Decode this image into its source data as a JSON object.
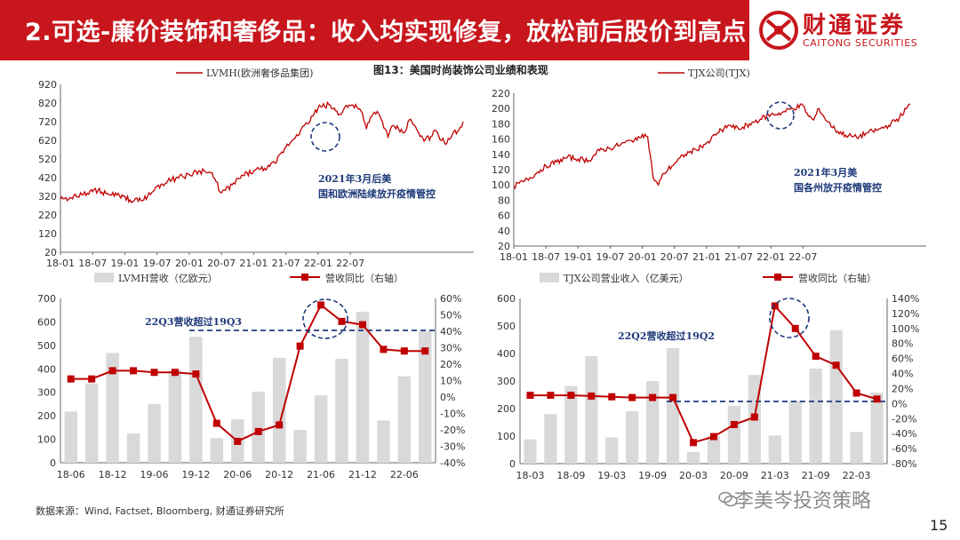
{
  "header": {
    "title": "2.可选-廉价装饰和奢侈品：收入均实现修复，放松前后股价到高点"
  },
  "logo": {
    "name": "财通证券",
    "en": "CAITONG SECURITIES"
  },
  "figure_title": "图13：美国时尚装饰公司业绩和表现",
  "source": "数据来源：Wind, Factset, Bloomberg, 财通证券研究所",
  "watermark": "李美岑投资策略",
  "page_number": "15",
  "colors": {
    "brand": "#c8161d",
    "line": "#c00000",
    "bar": "#d9d9d9",
    "dash": "#1f3a7a"
  },
  "chart_data": [
    {
      "id": "lvmh-price",
      "type": "line",
      "legend": "LVMH(欧洲奢侈品集团)",
      "yticks": [
        "920",
        "820",
        "720",
        "620",
        "520",
        "420",
        "320",
        "220",
        "120",
        "20"
      ],
      "ylim": [
        20,
        920
      ],
      "xticks": [
        "18-01",
        "18-07",
        "19-01",
        "19-07",
        "20-01",
        "20-07",
        "21-01",
        "21-07",
        "22-01",
        "22-07"
      ],
      "x": [
        0,
        2,
        4,
        6,
        7,
        9,
        11,
        13,
        15,
        17,
        18,
        20,
        22,
        24,
        26,
        28,
        29,
        30,
        32,
        34,
        36,
        38,
        39,
        40,
        42,
        44,
        46,
        48,
        50,
        52,
        53,
        55,
        56,
        57,
        58,
        59,
        60,
        61,
        62,
        63,
        64,
        65,
        66,
        67,
        68,
        69,
        70,
        71,
        72,
        73,
        74,
        75
      ],
      "values": [
        305,
        312,
        328,
        345,
        352,
        330,
        322,
        300,
        296,
        340,
        372,
        404,
        418,
        436,
        455,
        446,
        398,
        338,
        382,
        432,
        456,
        470,
        480,
        497,
        584,
        650,
        710,
        794,
        812,
        760,
        800,
        812,
        776,
        680,
        750,
        775,
        720,
        638,
        700,
        680,
        660,
        730,
        700,
        640,
        625,
        640,
        670,
        620,
        605,
        650,
        670,
        720
      ],
      "annotation": "2021年3月后美国和欧洲陆续放开疫情管控"
    },
    {
      "id": "tjx-price",
      "type": "line",
      "legend": "TJX公司(TJX)",
      "yticks": [
        "220",
        "200",
        "180",
        "160",
        "140",
        "120",
        "100",
        "80",
        "60",
        "40",
        "20"
      ],
      "ylim": [
        20,
        220
      ],
      "xticks": [
        "18-01",
        "18-07",
        "19-01",
        "19-07",
        "20-01",
        "20-07",
        "21-01",
        "21-07",
        "22-01",
        "22-07"
      ],
      "x": [
        0,
        2,
        4,
        6,
        8,
        10,
        12,
        14,
        16,
        18,
        20,
        22,
        24,
        25,
        26,
        27,
        28,
        30,
        32,
        34,
        36,
        38,
        40,
        42,
        44,
        46,
        48,
        50,
        52,
        54,
        55,
        56,
        57,
        58,
        60,
        62,
        64,
        66,
        68,
        70,
        72,
        74
      ],
      "values": [
        98,
        105,
        114,
        125,
        130,
        136,
        134,
        132,
        145,
        148,
        153,
        158,
        166,
        163,
        110,
        100,
        115,
        128,
        140,
        146,
        155,
        168,
        178,
        173,
        180,
        186,
        192,
        194,
        200,
        204,
        190,
        185,
        200,
        188,
        172,
        165,
        162,
        168,
        172,
        178,
        188,
        206
      ],
      "annotation": "2021年3月美国各州放开疫情管控"
    },
    {
      "id": "lvmh-revenue",
      "type": "bar+line",
      "legend_bar": "LVMH营收（亿欧元）",
      "legend_line": "营收同比（右轴）",
      "categories": [
        "18-06",
        "18-09",
        "18-12",
        "19-03",
        "19-06",
        "19-09",
        "19-12",
        "20-03",
        "20-06",
        "20-09",
        "20-12",
        "21-03",
        "21-06",
        "21-09",
        "21-12",
        "22-03",
        "22-06",
        "22-09"
      ],
      "xticks": [
        "18-06",
        "18-12",
        "19-06",
        "19-12",
        "20-06",
        "20-12",
        "21-06",
        "21-12",
        "22-06"
      ],
      "bars": [
        218,
        338,
        468,
        125,
        250,
        395,
        537,
        105,
        185,
        303,
        447,
        140,
        287,
        443,
        643,
        180,
        368,
        560
      ],
      "yoy": [
        11,
        11,
        16,
        16,
        15,
        15,
        14,
        -16,
        -27,
        -21,
        -17,
        31,
        56,
        46,
        44,
        29,
        28,
        28
      ],
      "ylim_left": [
        0,
        700
      ],
      "yticks_left": [
        "700",
        "600",
        "500",
        "400",
        "300",
        "200",
        "100",
        "0"
      ],
      "ylim_right": [
        -40,
        60
      ],
      "yticks_right": [
        "60%",
        "50%",
        "40%",
        "30%",
        "20%",
        "10%",
        "0%",
        "-10%",
        "-20%",
        "-30%",
        "-40%"
      ],
      "annotation": "22Q3营收超过19Q3"
    },
    {
      "id": "tjx-revenue",
      "type": "bar+line",
      "legend_bar": "TJX公司营业收入（亿美元）",
      "legend_line": "营收同比（右轴）",
      "categories": [
        "18-03",
        "18-06",
        "18-09",
        "18-12",
        "19-03",
        "19-06",
        "19-09",
        "19-12",
        "20-03",
        "20-06",
        "20-09",
        "20-12",
        "21-03",
        "21-06",
        "21-09",
        "21-12",
        "22-03",
        "22-06"
      ],
      "xticks": [
        "18-03",
        "18-09",
        "19-03",
        "19-09",
        "20-03",
        "20-09",
        "21-03",
        "21-09",
        "22-03"
      ],
      "bars": [
        88,
        180,
        282,
        390,
        95,
        190,
        300,
        420,
        42,
        100,
        210,
        322,
        102,
        228,
        345,
        485,
        115,
        258
      ],
      "yoy": [
        11,
        11,
        11,
        10,
        9,
        8,
        8,
        8,
        -52,
        -44,
        -28,
        -18,
        130,
        100,
        63,
        51,
        14,
        6
      ],
      "ylim_left": [
        0,
        600
      ],
      "yticks_left": [
        "600",
        "500",
        "400",
        "300",
        "200",
        "100",
        "0"
      ],
      "ylim_right": [
        -80,
        140
      ],
      "yticks_right": [
        "140%",
        "120%",
        "100%",
        "80%",
        "60%",
        "40%",
        "20%",
        "0%",
        "-20%",
        "-40%",
        "-60%",
        "-80%"
      ],
      "annotation": "22Q2营收超过19Q2"
    }
  ]
}
